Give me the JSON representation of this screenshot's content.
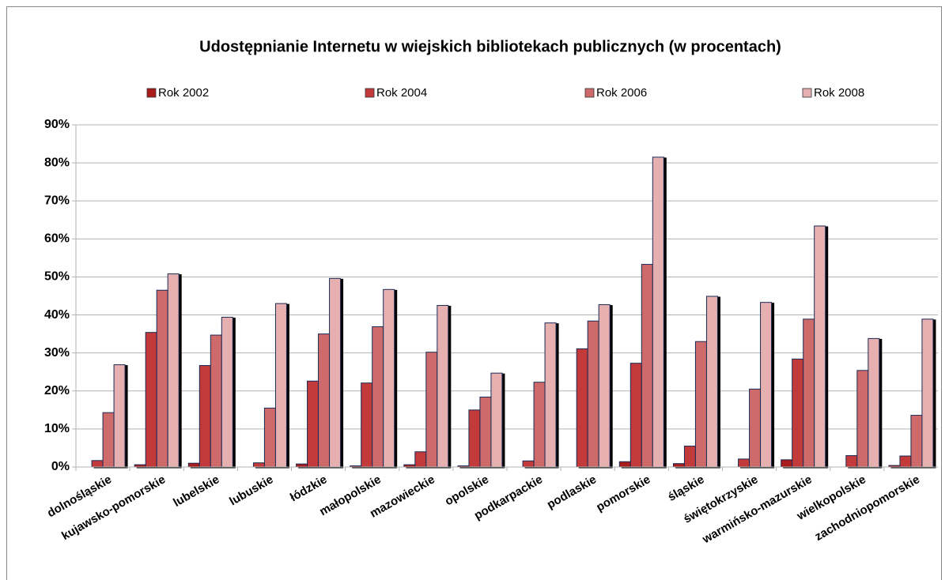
{
  "chart_data": {
    "type": "bar",
    "title": "Udostępnianie Internetu w wiejskich bibliotekach publicznych (w procentach)",
    "categories": [
      "dolnośląskie",
      "kujawsko-pomorskie",
      "lubelskie",
      "lubuskie",
      "łódzkie",
      "małopolskie",
      "mazowieckie",
      "opolskie",
      "podkarpackie",
      "podlaskie",
      "pomorskie",
      "śląskie",
      "świętokrzyskie",
      "warmińsko-mazurskie",
      "wielkopolskie",
      "zachodniopomorskie"
    ],
    "series": [
      {
        "name": "Rok 2002",
        "color": "#a81c1c",
        "values": [
          0,
          0.6,
          1.0,
          0,
          0.8,
          0.3,
          0.6,
          0.3,
          0,
          0,
          1.4,
          0.9,
          0,
          1.9,
          0,
          0.4
        ]
      },
      {
        "name": "Rok 2004",
        "color": "#c23a3a",
        "values": [
          1.7,
          35.4,
          26.7,
          1.1,
          22.6,
          22.1,
          4.0,
          15.0,
          1.6,
          31.1,
          27.3,
          5.5,
          2.1,
          28.4,
          3.0,
          2.9
        ]
      },
      {
        "name": "Rok 2006",
        "color": "#cf6a6a",
        "values": [
          14.3,
          46.5,
          34.7,
          15.5,
          35.0,
          36.9,
          30.2,
          18.4,
          22.3,
          38.4,
          53.3,
          33.0,
          20.5,
          38.9,
          25.4,
          13.6
        ]
      },
      {
        "name": "Rok 2008",
        "color": "#e7b0b0",
        "values": [
          26.9,
          50.8,
          39.4,
          43.0,
          49.6,
          46.7,
          42.5,
          24.7,
          37.9,
          42.7,
          81.5,
          44.9,
          43.3,
          63.4,
          33.8,
          38.9
        ]
      }
    ],
    "ylim": [
      0,
      90
    ],
    "yticks": [
      {
        "value": 0,
        "label": "0%"
      },
      {
        "value": 10,
        "label": "10%"
      },
      {
        "value": 20,
        "label": "20%"
      },
      {
        "value": 30,
        "label": "30%"
      },
      {
        "value": 40,
        "label": "40%"
      },
      {
        "value": 50,
        "label": "50%"
      },
      {
        "value": 60,
        "label": "60%"
      },
      {
        "value": 70,
        "label": "70%"
      },
      {
        "value": 80,
        "label": "80%"
      },
      {
        "value": 90,
        "label": "90%"
      }
    ],
    "grid": true,
    "legend": "top"
  }
}
